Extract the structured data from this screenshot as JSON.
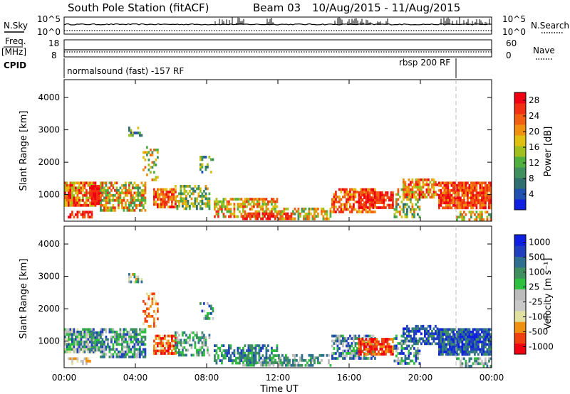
{
  "header": {
    "title": "South Pole Station (fitACF)",
    "beam": "Beam 03",
    "dates": "10/Aug/2015 - 11/Aug/2015"
  },
  "params": {
    "nsky_label": "N.Sky",
    "nsky_top": "10^5",
    "nsky_bot": "10^0",
    "nsky_right_top": "10^5",
    "nsky_right_bot": "10^0",
    "nsearch_label": "N.Search",
    "freq_label": "Freq.",
    "freq_unit": "[MHz]",
    "freq_top": "18",
    "freq_bot": "8",
    "nave_top": "60",
    "nave_bot": "0",
    "nave_label": "Nave",
    "cpid_label": "CPID",
    "cpid_left": "normalsound (fast) -157 RF",
    "cpid_right": "rbsp 200 RF"
  },
  "colors": {
    "power_scale": [
      "#1020e0",
      "#2050b0",
      "#2f6f70",
      "#3f8f5f",
      "#4faf3f",
      "#a0c020",
      "#e0c010",
      "#f09010",
      "#f06010",
      "#f03010",
      "#f00010"
    ],
    "velocity_scale": [
      "#f00010",
      "#f04010",
      "#f09010",
      "#e0e0a0",
      "#c8c8c8",
      "#bcbcbc",
      "#30c040",
      "#3f8f5f",
      "#2f6f90",
      "#2040c0",
      "#1020e0"
    ]
  },
  "chart_data": [
    {
      "type": "heatmap",
      "name": "power",
      "xlabel": "",
      "ylabel": "Slant Range [km]",
      "x_range": [
        "00:00",
        "00:00"
      ],
      "ylim": [
        180,
        4550
      ],
      "yticks": [
        "1000",
        "2000",
        "3000",
        "4000"
      ],
      "colorbar": {
        "label": "Power [dB]",
        "ticks": [
          "4",
          "8",
          "12",
          "16",
          "20",
          "24",
          "28"
        ],
        "range": [
          0,
          30
        ]
      }
    },
    {
      "type": "heatmap",
      "name": "velocity",
      "xlabel": "Time UT",
      "ylabel": "Slant Range [km]",
      "xticks": [
        "00:00",
        "04:00",
        "08:00",
        "12:00",
        "16:00",
        "20:00",
        "00:00"
      ],
      "ylim": [
        180,
        4550
      ],
      "yticks": [
        "1000",
        "2000",
        "3000",
        "4000"
      ],
      "colorbar": {
        "label": "Velocity [m s⁻¹]",
        "ticks": [
          "1000",
          "500",
          "100",
          "25",
          "-25",
          "-100",
          "-500",
          "-1000"
        ]
      }
    }
  ]
}
